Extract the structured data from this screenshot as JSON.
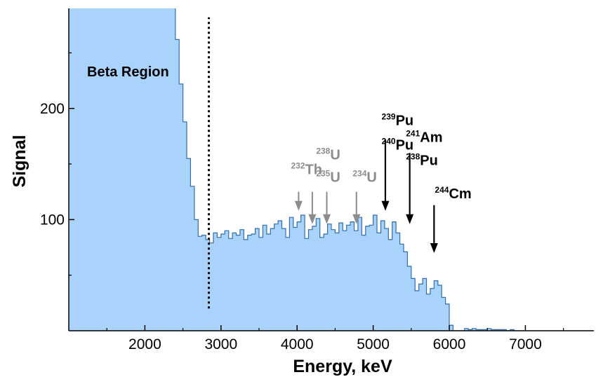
{
  "chart_data": {
    "type": "area",
    "xlabel": "Energy, keV",
    "ylabel": "Signal",
    "xlim": [
      1000,
      7900
    ],
    "ylim": [
      0,
      290
    ],
    "x_ticks": [
      2000,
      3000,
      4000,
      5000,
      6000,
      7000
    ],
    "y_ticks": [
      100,
      200
    ],
    "grid": false,
    "colors": {
      "fill": "#aad3fb",
      "stroke": "#2f6fb0",
      "axis": "#000000",
      "gray_arrow": "#8c8c8c",
      "black_arrow": "#000000"
    },
    "series": [
      {
        "bin_width": 50,
        "x": [
          1000,
          1050,
          1100,
          1150,
          1200,
          1250,
          1300,
          1350,
          1400,
          1450,
          1500,
          1550,
          1600,
          1650,
          1700,
          1750,
          1800,
          1850,
          1900,
          1950,
          2000,
          2050,
          2100,
          2150,
          2200,
          2250,
          2300,
          2350,
          2400,
          2450,
          2500,
          2550,
          2600,
          2650,
          2700,
          2750,
          2800,
          2850,
          2900,
          2950,
          3000,
          3050,
          3100,
          3150,
          3200,
          3250,
          3300,
          3350,
          3400,
          3450,
          3500,
          3550,
          3600,
          3650,
          3700,
          3750,
          3800,
          3850,
          3900,
          3950,
          4000,
          4050,
          4100,
          4150,
          4200,
          4250,
          4300,
          4350,
          4400,
          4450,
          4500,
          4550,
          4600,
          4650,
          4700,
          4750,
          4800,
          4850,
          4900,
          4950,
          5000,
          5050,
          5100,
          5150,
          5200,
          5250,
          5300,
          5350,
          5400,
          5450,
          5500,
          5550,
          5600,
          5650,
          5700,
          5750,
          5800,
          5850,
          5900,
          5950,
          6000,
          6050,
          6100,
          6150,
          6200,
          6250,
          6300,
          6350,
          6400,
          6450,
          6500,
          6550,
          6600,
          6650,
          6700,
          6750,
          6800,
          6850
        ],
        "values": [
          300,
          300,
          300,
          300,
          300,
          300,
          300,
          300,
          300,
          300,
          300,
          300,
          300,
          300,
          300,
          300,
          300,
          300,
          300,
          300,
          300,
          300,
          300,
          300,
          300,
          300,
          300,
          300,
          262,
          222,
          188,
          155,
          130,
          100,
          85,
          86,
          82,
          79,
          88,
          84,
          87,
          90,
          83,
          88,
          86,
          91,
          82,
          86,
          87,
          92,
          84,
          95,
          87,
          92,
          96,
          99,
          92,
          84,
          102,
          93,
          98,
          104,
          83,
          91,
          94,
          101,
          84,
          87,
          96,
          91,
          88,
          97,
          90,
          95,
          98,
          90,
          102,
          86,
          94,
          95,
          104,
          88,
          99,
          92,
          82,
          98,
          88,
          78,
          71,
          58,
          47,
          36,
          42,
          47,
          33,
          38,
          45,
          41,
          30,
          24,
          5,
          0,
          0,
          0,
          2,
          1,
          2,
          1,
          1,
          1,
          2,
          1,
          1,
          1,
          1,
          0,
          1,
          0
        ]
      }
    ],
    "vertical_line": {
      "x": 2840,
      "y_from": 20,
      "y_to": 282,
      "style": "dotted"
    },
    "region_label": {
      "text": "Beta Region",
      "x": 1150,
      "y": 243
    },
    "annotations": [
      {
        "mass": "232",
        "element": "Th",
        "x": 4020,
        "y_top": 125,
        "y_bottom": 108,
        "color": "gray",
        "label_x": 3920,
        "label_y": 141
      },
      {
        "mass": "238",
        "element": "U",
        "x": 4200,
        "y_top": 125,
        "y_bottom": 96,
        "color": "gray",
        "label_x": 4250,
        "label_y": 154
      },
      {
        "mass": "235",
        "element": "U",
        "x": 4390,
        "y_top": 125,
        "y_bottom": 96,
        "color": "gray",
        "label_x": 4250,
        "label_y": 134
      },
      {
        "mass": "234",
        "element": "U",
        "x": 4780,
        "y_top": 125,
        "y_bottom": 96,
        "color": "gray",
        "label_x": 4730,
        "label_y": 134
      },
      {
        "mass": "239",
        "element": "Pu",
        "x": 5160,
        "y_top": 172,
        "y_bottom": 108,
        "color": "black",
        "label_x": 5110,
        "label_y": 185
      },
      {
        "mass": "240",
        "element": "Pu",
        "x": 5160,
        "y_top": 172,
        "y_bottom": 108,
        "color": "black",
        "label_x": 5110,
        "label_y": 163
      },
      {
        "mass": "241",
        "element": "Am",
        "x": 5480,
        "y_top": 160,
        "y_bottom": 96,
        "color": "black",
        "label_x": 5430,
        "label_y": 170
      },
      {
        "mass": "238",
        "element": "Pu",
        "x": 5480,
        "y_top": 160,
        "y_bottom": 96,
        "color": "black",
        "label_x": 5430,
        "label_y": 149
      },
      {
        "mass": "244",
        "element": "Cm",
        "x": 5800,
        "y_top": 113,
        "y_bottom": 70,
        "color": "black",
        "label_x": 5810,
        "label_y": 119
      }
    ]
  }
}
